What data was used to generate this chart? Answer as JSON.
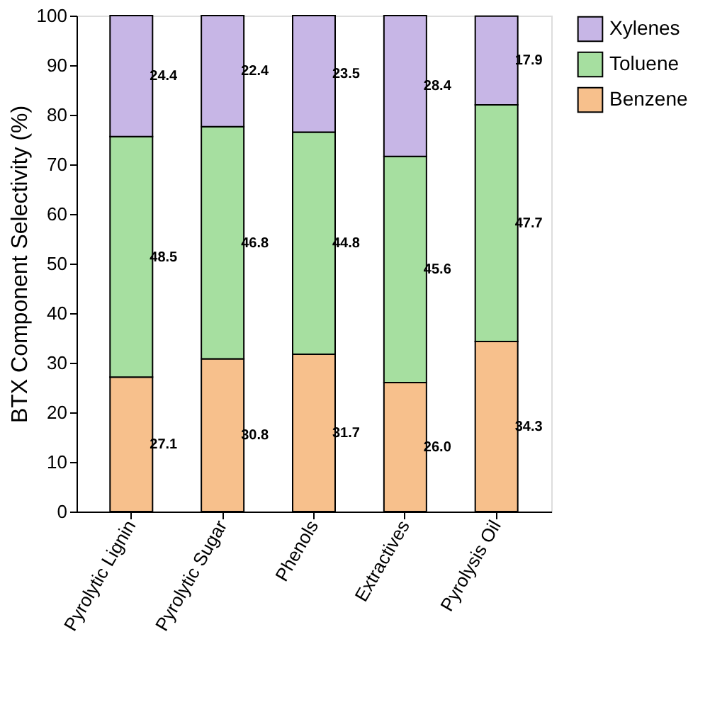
{
  "chart_data": {
    "type": "bar",
    "stacked": true,
    "ylabel": "BTX Component Selectivity (%)",
    "categories": [
      "Pyrolytic Lignin",
      "Pyrolytic Sugar",
      "Phenols",
      "Extractives",
      "Pyrolysis Oil"
    ],
    "series": [
      {
        "name": "Benzene",
        "color": "#f7c08c",
        "values": [
          27.1,
          30.8,
          31.7,
          26.0,
          34.3
        ],
        "value_labels": [
          "27.1",
          "30.8",
          "31.7",
          "26.0",
          "34.3"
        ]
      },
      {
        "name": "Toluene",
        "color": "#a6dfa0",
        "values": [
          48.5,
          46.8,
          44.8,
          45.6,
          47.7
        ],
        "value_labels": [
          "48.5",
          "46.8",
          "44.8",
          "45.6",
          "47.7"
        ]
      },
      {
        "name": "Xylenes",
        "color": "#c7b6e6",
        "values": [
          24.4,
          22.4,
          23.5,
          28.4,
          17.9
        ],
        "value_labels": [
          "24.4",
          "22.4",
          "23.5",
          "28.4",
          "17.9"
        ]
      }
    ],
    "ylim": [
      0,
      100
    ],
    "yticks": [
      0,
      10,
      20,
      30,
      40,
      50,
      60,
      70,
      80,
      90,
      100
    ],
    "legend": "right",
    "grid": false
  }
}
